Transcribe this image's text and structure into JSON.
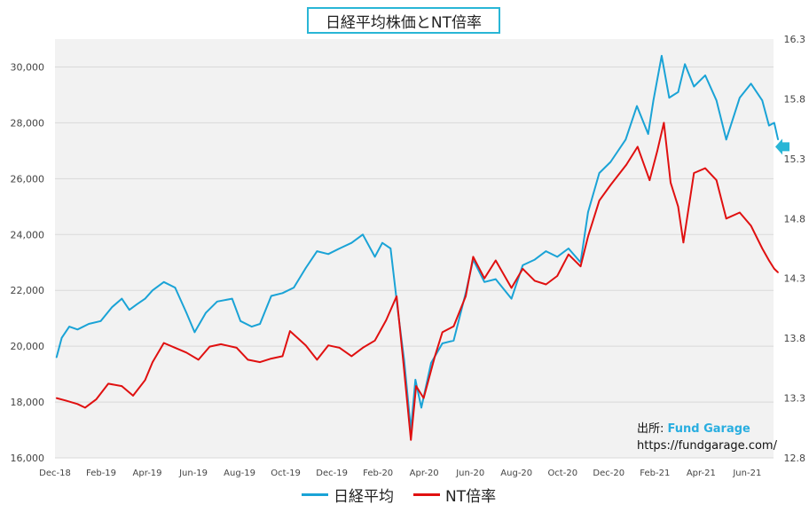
{
  "chart_data": {
    "type": "line",
    "title": "日経平均株価とNT倍率",
    "x_tick_labels": [
      "Dec-18",
      "Feb-19",
      "Apr-19",
      "Jun-19",
      "Aug-19",
      "Oct-19",
      "Dec-19",
      "Feb-20",
      "Apr-20",
      "Jun-20",
      "Aug-20",
      "Oct-20",
      "Dec-20",
      "Feb-21",
      "Apr-21",
      "Jun-21"
    ],
    "x_range": [
      "2018-12-01",
      "2021-07-15"
    ],
    "y_left": {
      "range": [
        16000,
        31000
      ],
      "ticks": [
        "16,000",
        "18,000",
        "20,000",
        "22,000",
        "24,000",
        "26,000",
        "28,000",
        "30,000"
      ]
    },
    "y_right": {
      "range": [
        12.8,
        16.3
      ],
      "ticks": [
        "12.8",
        "13.3",
        "13.8",
        "14.3",
        "14.8",
        "15.3",
        "15.8",
        "16.3"
      ]
    },
    "grid": true,
    "legend_position": "bottom",
    "series": [
      {
        "name": "日経平均",
        "axis": "left",
        "color": "#1aa3d6",
        "points": [
          [
            "2018-12-03",
            19600
          ],
          [
            "2018-12-10",
            20300
          ],
          [
            "2018-12-20",
            20700
          ],
          [
            "2018-12-31",
            20600
          ],
          [
            "2019-01-15",
            20800
          ],
          [
            "2019-01-31",
            20900
          ],
          [
            "2019-02-15",
            21400
          ],
          [
            "2019-02-28",
            21700
          ],
          [
            "2019-03-10",
            21300
          ],
          [
            "2019-03-20",
            21500
          ],
          [
            "2019-03-31",
            21700
          ],
          [
            "2019-04-10",
            22000
          ],
          [
            "2019-04-25",
            22300
          ],
          [
            "2019-05-10",
            22100
          ],
          [
            "2019-05-25",
            21200
          ],
          [
            "2019-06-05",
            20500
          ],
          [
            "2019-06-20",
            21200
          ],
          [
            "2019-07-05",
            21600
          ],
          [
            "2019-07-25",
            21700
          ],
          [
            "2019-08-05",
            20900
          ],
          [
            "2019-08-20",
            20700
          ],
          [
            "2019-08-31",
            20800
          ],
          [
            "2019-09-15",
            21800
          ],
          [
            "2019-09-30",
            21900
          ],
          [
            "2019-10-15",
            22100
          ],
          [
            "2019-10-31",
            22800
          ],
          [
            "2019-11-15",
            23400
          ],
          [
            "2019-11-30",
            23300
          ],
          [
            "2019-12-15",
            23500
          ],
          [
            "2019-12-31",
            23700
          ],
          [
            "2020-01-15",
            24000
          ],
          [
            "2020-01-31",
            23200
          ],
          [
            "2020-02-10",
            23700
          ],
          [
            "2020-02-21",
            23500
          ],
          [
            "2020-03-02",
            21200
          ],
          [
            "2020-03-10",
            19500
          ],
          [
            "2020-03-19",
            17000
          ],
          [
            "2020-03-25",
            18800
          ],
          [
            "2020-04-02",
            17800
          ],
          [
            "2020-04-15",
            19400
          ],
          [
            "2020-04-30",
            20100
          ],
          [
            "2020-05-15",
            20200
          ],
          [
            "2020-05-31",
            21900
          ],
          [
            "2020-06-10",
            23100
          ],
          [
            "2020-06-25",
            22300
          ],
          [
            "2020-07-10",
            22400
          ],
          [
            "2020-07-31",
            21700
          ],
          [
            "2020-08-15",
            22900
          ],
          [
            "2020-08-31",
            23100
          ],
          [
            "2020-09-15",
            23400
          ],
          [
            "2020-09-30",
            23200
          ],
          [
            "2020-10-15",
            23500
          ],
          [
            "2020-10-31",
            23000
          ],
          [
            "2020-11-10",
            24800
          ],
          [
            "2020-11-25",
            26200
          ],
          [
            "2020-12-10",
            26600
          ],
          [
            "2020-12-30",
            27400
          ],
          [
            "2021-01-14",
            28600
          ],
          [
            "2021-01-29",
            27600
          ],
          [
            "2021-02-05",
            28800
          ],
          [
            "2021-02-16",
            30400
          ],
          [
            "2021-02-26",
            28900
          ],
          [
            "2021-03-10",
            29100
          ],
          [
            "2021-03-19",
            30100
          ],
          [
            "2021-03-31",
            29300
          ],
          [
            "2021-04-15",
            29700
          ],
          [
            "2021-04-30",
            28800
          ],
          [
            "2021-05-13",
            27400
          ],
          [
            "2021-05-31",
            28900
          ],
          [
            "2021-06-15",
            29400
          ],
          [
            "2021-06-30",
            28800
          ],
          [
            "2021-07-09",
            27900
          ],
          [
            "2021-07-16",
            28000
          ],
          [
            "2021-07-21",
            27400
          ]
        ]
      },
      {
        "name": "NT倍率",
        "axis": "right",
        "color": "#e01010",
        "points": [
          [
            "2018-12-03",
            13.3
          ],
          [
            "2018-12-15",
            13.28
          ],
          [
            "2018-12-31",
            13.25
          ],
          [
            "2019-01-10",
            13.22
          ],
          [
            "2019-01-25",
            13.29
          ],
          [
            "2019-02-10",
            13.42
          ],
          [
            "2019-02-28",
            13.4
          ],
          [
            "2019-03-15",
            13.32
          ],
          [
            "2019-03-31",
            13.45
          ],
          [
            "2019-04-10",
            13.6
          ],
          [
            "2019-04-25",
            13.76
          ],
          [
            "2019-05-10",
            13.72
          ],
          [
            "2019-05-25",
            13.68
          ],
          [
            "2019-06-10",
            13.62
          ],
          [
            "2019-06-25",
            13.73
          ],
          [
            "2019-07-10",
            13.75
          ],
          [
            "2019-07-31",
            13.72
          ],
          [
            "2019-08-15",
            13.62
          ],
          [
            "2019-08-31",
            13.6
          ],
          [
            "2019-09-15",
            13.63
          ],
          [
            "2019-09-30",
            13.65
          ],
          [
            "2019-10-10",
            13.86
          ],
          [
            "2019-10-31",
            13.74
          ],
          [
            "2019-11-15",
            13.62
          ],
          [
            "2019-11-30",
            13.74
          ],
          [
            "2019-12-15",
            13.72
          ],
          [
            "2019-12-31",
            13.65
          ],
          [
            "2020-01-15",
            13.72
          ],
          [
            "2020-01-31",
            13.78
          ],
          [
            "2020-02-15",
            13.95
          ],
          [
            "2020-02-29",
            14.15
          ],
          [
            "2020-03-09",
            13.6
          ],
          [
            "2020-03-19",
            12.95
          ],
          [
            "2020-03-26",
            13.4
          ],
          [
            "2020-04-05",
            13.3
          ],
          [
            "2020-04-20",
            13.65
          ],
          [
            "2020-04-30",
            13.85
          ],
          [
            "2020-05-15",
            13.9
          ],
          [
            "2020-05-31",
            14.15
          ],
          [
            "2020-06-10",
            14.48
          ],
          [
            "2020-06-25",
            14.3
          ],
          [
            "2020-07-10",
            14.45
          ],
          [
            "2020-07-31",
            14.22
          ],
          [
            "2020-08-15",
            14.38
          ],
          [
            "2020-08-31",
            14.28
          ],
          [
            "2020-09-15",
            14.25
          ],
          [
            "2020-09-30",
            14.32
          ],
          [
            "2020-10-15",
            14.5
          ],
          [
            "2020-10-31",
            14.4
          ],
          [
            "2020-11-10",
            14.65
          ],
          [
            "2020-11-25",
            14.95
          ],
          [
            "2020-12-10",
            15.08
          ],
          [
            "2020-12-31",
            15.25
          ],
          [
            "2021-01-15",
            15.4
          ],
          [
            "2021-01-31",
            15.12
          ],
          [
            "2021-02-10",
            15.36
          ],
          [
            "2021-02-19",
            15.6
          ],
          [
            "2021-02-28",
            15.1
          ],
          [
            "2021-03-10",
            14.9
          ],
          [
            "2021-03-17",
            14.6
          ],
          [
            "2021-03-31",
            15.18
          ],
          [
            "2021-04-15",
            15.22
          ],
          [
            "2021-04-30",
            15.12
          ],
          [
            "2021-05-13",
            14.8
          ],
          [
            "2021-05-31",
            14.85
          ],
          [
            "2021-06-15",
            14.74
          ],
          [
            "2021-06-30",
            14.55
          ],
          [
            "2021-07-09",
            14.45
          ],
          [
            "2021-07-16",
            14.38
          ],
          [
            "2021-07-21",
            14.35
          ]
        ]
      }
    ],
    "annotations": [
      {
        "type": "arrow",
        "points": "left",
        "axis": "right",
        "y": 15.4,
        "color": "#29b6d6"
      }
    ]
  },
  "source": {
    "prefix": "出所: ",
    "brand": "Fund Garage",
    "url": "https://fundgarage.com/"
  }
}
